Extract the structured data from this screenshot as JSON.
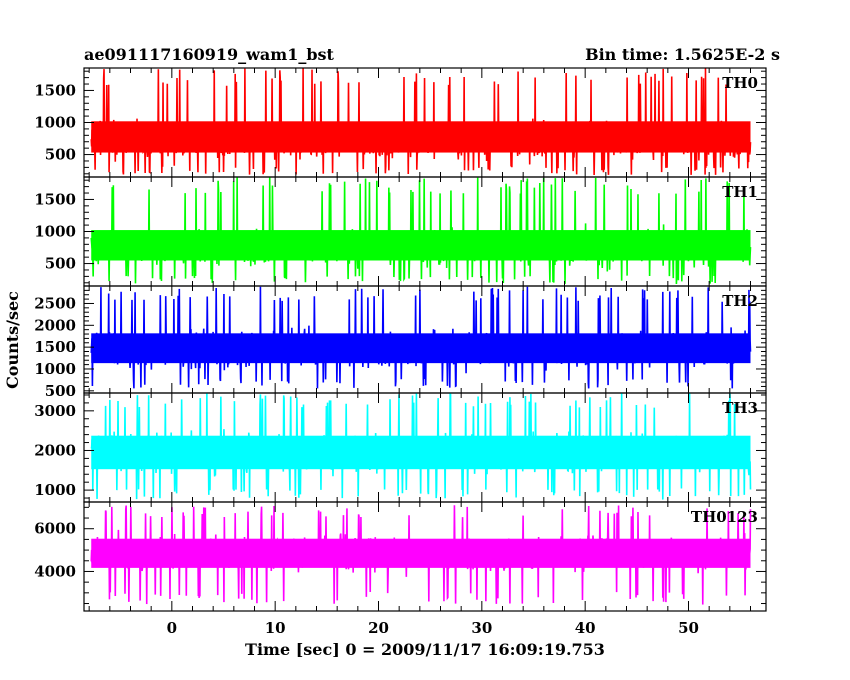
{
  "header": {
    "title": "ae091117160919_wam1_bst",
    "bin_time": "Bin time: 1.5625E-2 s"
  },
  "axes": {
    "ylabel": "Counts/sec",
    "xlabel": "Time [sec] 0 = 2009/11/17 16:09:19.753"
  },
  "colors": {
    "background": "#ffffff",
    "frame": "#000000"
  },
  "chart_data": {
    "type": "line",
    "x_range": [
      -8.5,
      57.5
    ],
    "x_ticks": [
      0,
      10,
      20,
      30,
      40,
      50
    ],
    "x_minor_step": 2,
    "x_tick_labels": [
      "0",
      "10",
      "20",
      "30",
      "40",
      "50"
    ],
    "data_x_range": [
      -7.8,
      56.0
    ],
    "bin_time": 0.015625,
    "grid": false,
    "series": [
      {
        "name": "TH0",
        "color": "#ff0000",
        "ylim": [
          150,
          1850
        ],
        "y_ticks": [
          500,
          1000,
          1500
        ],
        "y_tick_labels": [
          "500",
          "1000",
          "1500"
        ],
        "y_minor_step": 100,
        "mean": 720,
        "low": 180,
        "high": 1850,
        "envelope_low": 400,
        "envelope_high": 1150
      },
      {
        "name": "TH1",
        "color": "#00ff00",
        "ylim": [
          150,
          1850
        ],
        "y_ticks": [
          500,
          1000,
          1500
        ],
        "y_tick_labels": [
          "500",
          "1000",
          "1500"
        ],
        "y_minor_step": 100,
        "mean": 750,
        "low": 180,
        "high": 1850,
        "envelope_low": 420,
        "envelope_high": 1150
      },
      {
        "name": "TH2",
        "color": "#0000ff",
        "ylim": [
          450,
          2900
        ],
        "y_ticks": [
          500,
          1000,
          1500,
          2000,
          2500
        ],
        "y_tick_labels": [
          "500",
          "1000",
          "1500",
          "2000",
          "2500"
        ],
        "y_minor_step": 100,
        "mean": 1450,
        "low": 550,
        "high": 2900,
        "envelope_low": 950,
        "envelope_high": 2000
      },
      {
        "name": "TH3",
        "color": "#00ffff",
        "ylim": [
          700,
          3450
        ],
        "y_ticks": [
          1000,
          2000,
          3000
        ],
        "y_tick_labels": [
          "1000",
          "2000",
          "3000"
        ],
        "y_minor_step": 200,
        "mean": 1950,
        "low": 750,
        "high": 3450,
        "envelope_low": 1300,
        "envelope_high": 2600
      },
      {
        "name": "TH0123",
        "color": "#ff00ff",
        "ylim": [
          2150,
          7250
        ],
        "y_ticks": [
          4000,
          6000
        ],
        "y_tick_labels": [
          "4000",
          "6000"
        ],
        "y_minor_step": 500,
        "mean": 4850,
        "low": 2450,
        "high": 7100,
        "envelope_low": 3800,
        "envelope_high": 5900
      }
    ]
  }
}
